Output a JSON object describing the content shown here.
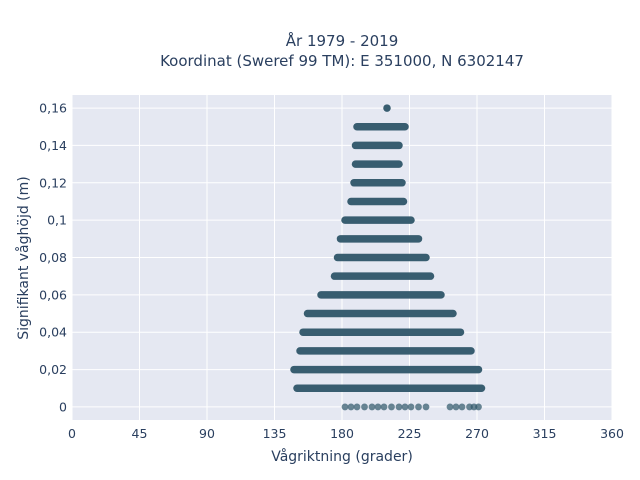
{
  "chart_data": {
    "type": "scatter",
    "title_lines": [
      "År 1979 - 2019",
      "Koordinat (Sweref 99 TM): E 351000, N 6302147"
    ],
    "xlabel": "Vågriktning (grader)",
    "ylabel": "Signifikant våghöjd (m)",
    "xlim": [
      0,
      360
    ],
    "ylim": [
      -0.007,
      0.167
    ],
    "x_ticks": [
      0,
      45,
      90,
      135,
      180,
      225,
      270,
      315,
      360
    ],
    "x_tick_labels": [
      "0",
      "45",
      "90",
      "135",
      "180",
      "225",
      "270",
      "315",
      "360"
    ],
    "y_ticks": [
      0,
      0.02,
      0.04,
      0.06,
      0.08,
      0.1,
      0.12,
      0.14,
      0.16
    ],
    "y_tick_labels": [
      "0",
      "0,02",
      "0,04",
      "0,06",
      "0,08",
      "0,1",
      "0,12",
      "0,14",
      "0,16"
    ],
    "grid": true,
    "marker_color": "#2e5568",
    "bands": [
      {
        "y": 0.0,
        "x_min": 180,
        "x_max": 272
      },
      {
        "y": 0.01,
        "x_min": 150,
        "x_max": 273
      },
      {
        "y": 0.02,
        "x_min": 148,
        "x_max": 271
      },
      {
        "y": 0.03,
        "x_min": 152,
        "x_max": 266
      },
      {
        "y": 0.04,
        "x_min": 154,
        "x_max": 259
      },
      {
        "y": 0.05,
        "x_min": 157,
        "x_max": 254
      },
      {
        "y": 0.06,
        "x_min": 166,
        "x_max": 246
      },
      {
        "y": 0.07,
        "x_min": 175,
        "x_max": 239
      },
      {
        "y": 0.08,
        "x_min": 177,
        "x_max": 236
      },
      {
        "y": 0.09,
        "x_min": 179,
        "x_max": 231
      },
      {
        "y": 0.1,
        "x_min": 182,
        "x_max": 226
      },
      {
        "y": 0.11,
        "x_min": 186,
        "x_max": 221
      },
      {
        "y": 0.12,
        "x_min": 188,
        "x_max": 220
      },
      {
        "y": 0.13,
        "x_min": 189,
        "x_max": 218
      },
      {
        "y": 0.14,
        "x_min": 189,
        "x_max": 218
      },
      {
        "y": 0.15,
        "x_min": 190,
        "x_max": 222
      },
      {
        "y": 0.16,
        "x_min": 210,
        "x_max": 210
      }
    ],
    "sparse_points": [
      {
        "x": 182,
        "y": 0
      },
      {
        "x": 186,
        "y": 0
      },
      {
        "x": 190,
        "y": 0
      },
      {
        "x": 195,
        "y": 0
      },
      {
        "x": 200,
        "y": 0
      },
      {
        "x": 204,
        "y": 0
      },
      {
        "x": 208,
        "y": 0
      },
      {
        "x": 213,
        "y": 0
      },
      {
        "x": 218,
        "y": 0
      },
      {
        "x": 222,
        "y": 0
      },
      {
        "x": 226,
        "y": 0
      },
      {
        "x": 231,
        "y": 0
      },
      {
        "x": 236,
        "y": 0
      },
      {
        "x": 252,
        "y": 0
      },
      {
        "x": 256,
        "y": 0
      },
      {
        "x": 260,
        "y": 0
      },
      {
        "x": 265,
        "y": 0
      },
      {
        "x": 268,
        "y": 0
      },
      {
        "x": 271,
        "y": 0
      }
    ]
  }
}
